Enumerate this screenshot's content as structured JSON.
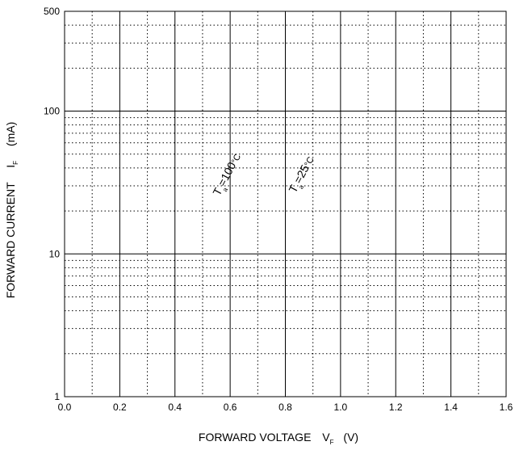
{
  "chart_data": {
    "type": "line",
    "title": "",
    "xlabel": {
      "main": "FORWARD VOLTAGE",
      "symbol": "V",
      "subscript": "F",
      "unit": "(V)"
    },
    "ylabel": {
      "main": "FORWARD CURRENT",
      "symbol": "I",
      "subscript": "F",
      "unit": "(mA)"
    },
    "xlim": [
      0.0,
      1.6
    ],
    "ylim": [
      1,
      500
    ],
    "yscale": "log",
    "xticks": [
      "0.0",
      "0.2",
      "0.4",
      "0.6",
      "0.8",
      "1.0",
      "1.2",
      "1.4",
      "1.6"
    ],
    "yticks": [
      "1",
      "10",
      "100",
      "500"
    ],
    "grid": "major solid, minor dotted",
    "annotations": [
      {
        "text_main": "T",
        "text_sub": "a",
        "text_rest": "=100",
        "degree": "°C",
        "x": 0.6,
        "y": 35
      },
      {
        "text_main": "T",
        "text_sub": "a",
        "text_rest": "=25",
        "degree": "°C",
        "x": 0.87,
        "y": 35
      }
    ],
    "series": []
  }
}
